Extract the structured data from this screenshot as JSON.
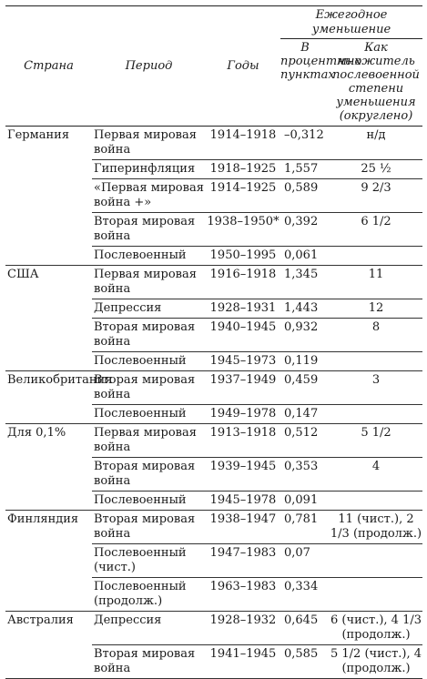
{
  "header": {
    "country": "Страна",
    "period": "Период",
    "years": "Годы",
    "group": "Ежегодное уменьшение",
    "decrease": "В процентных пунктах",
    "multiplier": "Как множитель послевоенной степени уменьшения (округлено)"
  },
  "rows": [
    {
      "country": "Германия",
      "period": "Первая мировая война",
      "years": "1914–1918",
      "dec": "–0,312",
      "mult": "н/д"
    },
    {
      "country": "",
      "period": "Гиперинфляция",
      "years": "1918–1925",
      "dec": "1,557",
      "mult": "25 ½"
    },
    {
      "country": "",
      "period": "«Первая мировая война +»",
      "years": "1914–1925",
      "dec": "0,589",
      "mult": "9 2/3"
    },
    {
      "country": "",
      "period": "Вторая мировая война",
      "years": "1938–1950*",
      "dec": "0,392",
      "mult": "6 1/2"
    },
    {
      "country": "",
      "period": "Послевоенный",
      "years": "1950–1995",
      "dec": "0,061",
      "mult": ""
    },
    {
      "country": "США",
      "period": "Первая мировая война",
      "years": "1916–1918",
      "dec": "1,345",
      "mult": "11"
    },
    {
      "country": "",
      "period": "Депрессия",
      "years": "1928–1931",
      "dec": "1,443",
      "mult": "12"
    },
    {
      "country": "",
      "period": "Вторая мировая война",
      "years": "1940–1945",
      "dec": "0,932",
      "mult": "8"
    },
    {
      "country": "",
      "period": "Послевоенный",
      "years": "1945–1973",
      "dec": "0,119",
      "mult": ""
    },
    {
      "country": "Великобритания",
      "period": "Вторая мировая война",
      "years": "1937–1949",
      "dec": "0,459",
      "mult": "3"
    },
    {
      "country": "",
      "period": "Послевоенный",
      "years": "1949–1978",
      "dec": "0,147",
      "mult": ""
    },
    {
      "country": "Для 0,1%",
      "period": "Первая мировая война",
      "years": "1913–1918",
      "dec": "0,512",
      "mult": "5 1/2"
    },
    {
      "country": "",
      "period": "Вторая мировая война",
      "years": "1939–1945",
      "dec": "0,353",
      "mult": "4"
    },
    {
      "country": "",
      "period": "Послевоенный",
      "years": "1945–1978",
      "dec": "0,091",
      "mult": ""
    },
    {
      "country": "Финляндия",
      "period": "Вторая мировая война",
      "years": "1938–1947",
      "dec": "0,781",
      "mult": "11 (чист.), 2 1/3 (продолж.)"
    },
    {
      "country": "",
      "period": "Послевоенный (чист.)",
      "years": "1947–1983",
      "dec": "0,07",
      "mult": ""
    },
    {
      "country": "",
      "period": "Послевоенный (продолж.)",
      "years": "1963–1983",
      "dec": "0,334",
      "mult": ""
    },
    {
      "country": "Австралия",
      "period": "Депрессия",
      "years": "1928–1932",
      "dec": "0,645",
      "mult": "6 (чист.), 4 1/3 (продолж.)"
    },
    {
      "country": "",
      "period": "Вторая мировая война",
      "years": "1941–1945",
      "dec": "0,585",
      "mult": "5 1/2 (чист.), 4 (продолж.)"
    }
  ]
}
